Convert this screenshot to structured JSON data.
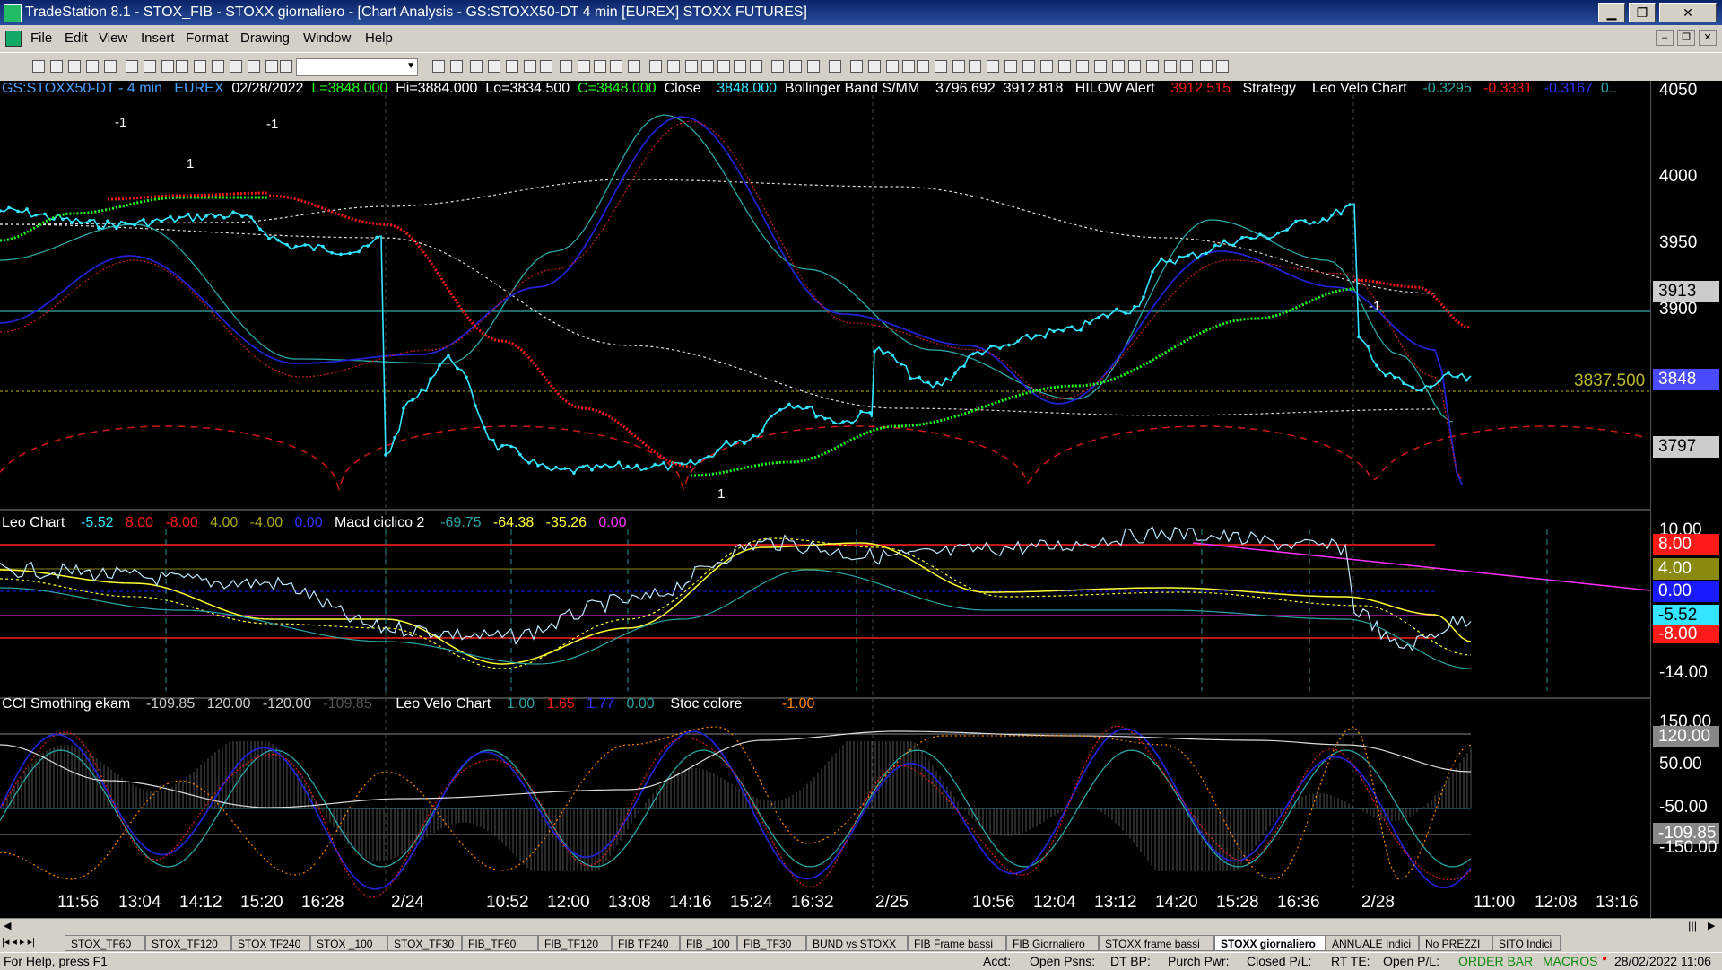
{
  "window": {
    "title": "TradeStation 8.1 - STOX_FIB - STOXX giornaliero - [Chart Analysis - GS:STOXX50-DT  4 min  [EUREX] STOXX FUTURES]",
    "minimize": "▁",
    "maximize": "❐",
    "close": "✕"
  },
  "menu": [
    "File",
    "Edit",
    "View",
    "Insert",
    "Format",
    "Drawing",
    "Window",
    "Help"
  ],
  "mdi_buttons": [
    "–",
    "❐",
    "✕"
  ],
  "price_header": {
    "symbol": "GS:STOXX50-DT - 4 min",
    "exchange": "EUREX",
    "date": "02/28/2022",
    "last": "L=3848.000",
    "high": "Hi=3884.000",
    "low": "Lo=3834.500",
    "close_val": "C=3848.000",
    "close_label": "Close",
    "close_num": "3848.000",
    "bb_label": "Bollinger Band S/MM",
    "bb_v1": "3796.692",
    "bb_v2": "3912.818",
    "hilow_label": "HILOW Alert",
    "hilow_v": "3912.515",
    "strategy": "Strategy",
    "leo_velo": "Leo Velo Chart",
    "lv1": "-0.3295",
    "lv2": "-0.3331",
    "lv3": "-0.3167",
    "lv4": "0.."
  },
  "macd_header": {
    "leo_chart": "Leo Chart",
    "v1": "-5.52",
    "v2": "8.00",
    "v3": "-8.00",
    "v4": "4.00",
    "v5": "-4.00",
    "v6": "0.00",
    "macd_label": "Macd ciclico 2",
    "m1": "-69.75",
    "m2": "-64.38",
    "m3": "-35.26",
    "m4": "0.00"
  },
  "cci_header": {
    "cci_label": "CCI Smothing ekam",
    "c1": "-109.85",
    "c2": "120.00",
    "c3": "-120.00",
    "c4": "-109.85",
    "leo_velo": "Leo Velo Chart",
    "l1": "1.00",
    "l2": "1.65",
    "l3": "1.77",
    "l4": "0.00",
    "stoc": "Stoc colore",
    "s1": "-1.00"
  },
  "price_axis": {
    "ticks": [
      "4050",
      "4000",
      "3950",
      "3900"
    ],
    "box_3913": "3913",
    "box_3848": "3848",
    "box_3797": "3797",
    "level_label": "3837.500"
  },
  "macd_axis": {
    "top": "10.00",
    "box_8": "8.00",
    "box_4": "4.00",
    "box_0": "0.00",
    "box_m552": "-5.52",
    "box_m8": "-8.00",
    "bottom": "-14.00"
  },
  "cci_axis": {
    "top": "150.00",
    "box_120": "120.00",
    "t50": "50.00",
    "tm50": "-50.00",
    "box_m10985": "-109.85",
    "bottom": "-150.00"
  },
  "time_axis": [
    "11:56",
    "13:04",
    "14:12",
    "15:20",
    "16:28",
    "2/24",
    "10:52",
    "12:00",
    "13:08",
    "14:16",
    "15:24",
    "16:32",
    "2/25",
    "10:56",
    "12:04",
    "13:12",
    "14:20",
    "15:28",
    "16:36",
    "2/28",
    "11:00",
    "12:08",
    "13:16"
  ],
  "signals": {
    "minus1_a": "-1",
    "minus1_b": "-1",
    "minus1_c": "-1",
    "one_a": "1",
    "one_b": "1"
  },
  "tabs": [
    "STOX_TF60",
    "STOX_TF120",
    "STOX TF240",
    "STOX _100",
    "STOX_TF30",
    "FIB_TF60",
    "FIB_TF120",
    "FIB TF240",
    "FIB _100",
    "FIB_TF30",
    "BUND vs STOXX",
    "FIB Frame bassi",
    "FIB Giornaliero",
    "STOXX frame bassi",
    "STOXX giornaliero",
    "ANNUALE Indici",
    "No PREZZI",
    "SITO Indici"
  ],
  "active_tab": "STOXX giornaliero",
  "status": {
    "help": "For Help, press F1",
    "acct": "Acct:",
    "open_psns": "Open Psns:",
    "dt_bp": "DT BP:",
    "purch_pwr": "Purch Pwr:",
    "closed_pl": "Closed P/L:",
    "rt_te": "RT TE:",
    "open_pl": "Open P/L:",
    "order_bar": "ORDER BAR",
    "macros": "MACROS",
    "datetime": "28/02/2022 11:06"
  },
  "colors": {
    "cyan": "#33e5ff",
    "green": "#21ff21",
    "red": "#ff1a1a",
    "yellow": "#ffff33",
    "magenta": "#ff33ff",
    "blue": "#2222cc",
    "teal": "#2aa5a5"
  }
}
